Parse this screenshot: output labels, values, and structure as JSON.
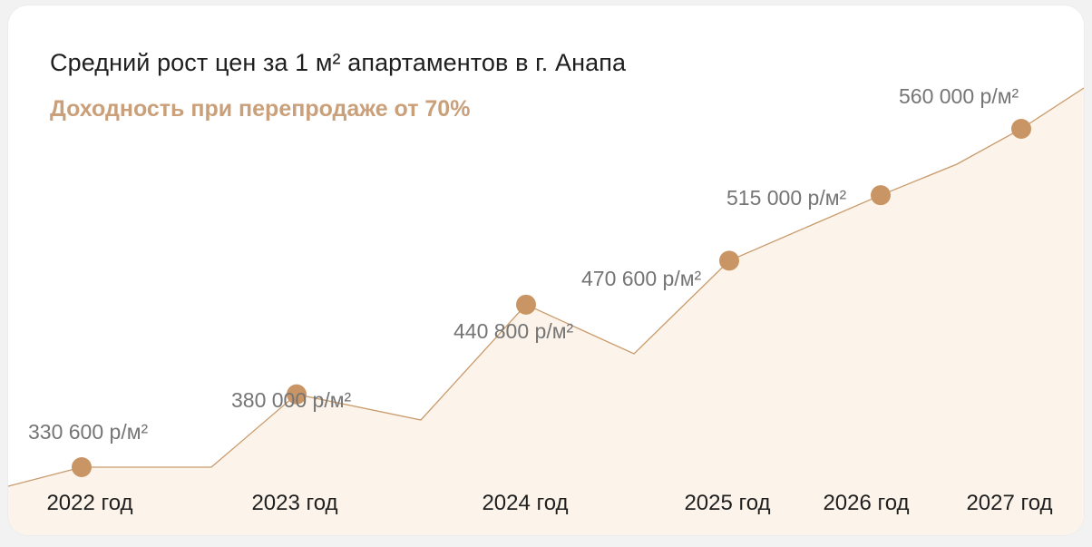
{
  "header": {
    "title": "Средний рост цен за 1 м² апартаментов в г. Анапа",
    "subtitle": "Доходность при перепродаже от 70%"
  },
  "colors": {
    "line": "#c99b6c",
    "marker": "#c99565",
    "area": "#fcf4ea",
    "value_text": "#757575",
    "year_text": "#1f1f1f",
    "subtitle": "#caa07a"
  },
  "chart_data": {
    "type": "area",
    "title": "Средний рост цен за 1 м² апартаментов в г. Анапа",
    "subtitle": "Доходность при перепродаже от 70%",
    "categories": [
      "2022 год",
      "2023 год",
      "2024 год",
      "2025 год",
      "2026 год",
      "2027 год"
    ],
    "values": [
      330600,
      380000,
      440800,
      470600,
      515000,
      560000
    ],
    "data_labels": [
      "330 600 р/м²",
      "380 000 р/м²",
      "440 800 р/м²",
      "470 600 р/м²",
      "515 000 р/м²",
      "560 000 р/м²"
    ],
    "unit": "р/м²",
    "xlabel": "",
    "ylabel": "",
    "grid": false,
    "legend": "none"
  }
}
